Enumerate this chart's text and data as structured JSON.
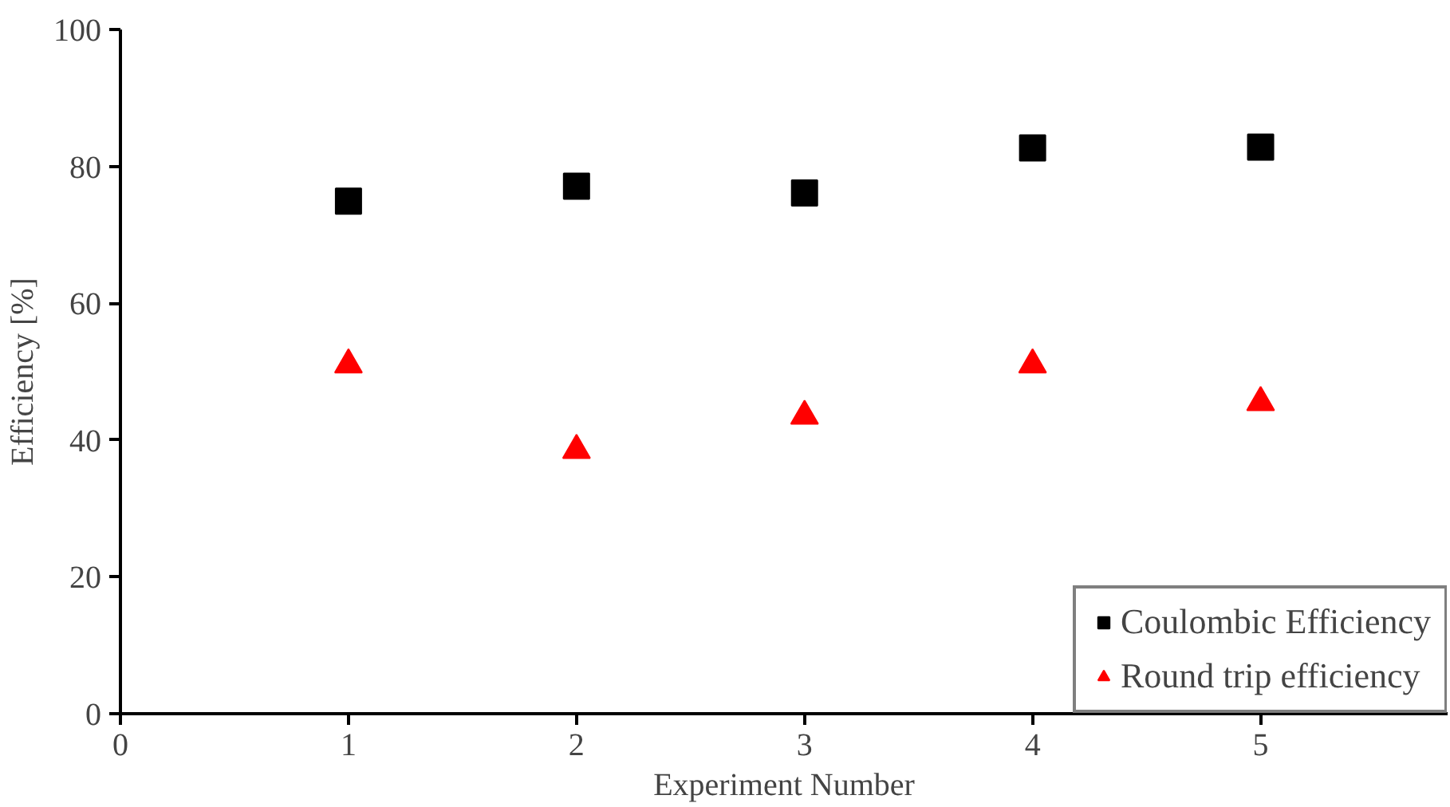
{
  "chart_data": {
    "type": "scatter",
    "xlabel": "Experiment Number",
    "ylabel": "Efficiency [%]",
    "x": [
      1,
      2,
      3,
      4,
      5
    ],
    "series": [
      {
        "name": "Coulombic Efficiency",
        "color": "#000000",
        "marker": "square",
        "values": [
          74.9,
          77.1,
          76.1,
          82.7,
          82.8
        ]
      },
      {
        "name": "Round trip efficiency",
        "color": "#ff0000",
        "marker": "triangle",
        "values": [
          51,
          38.5,
          43.5,
          51,
          45.5
        ]
      }
    ],
    "xlim": [
      0,
      5.82
    ],
    "xticks": [
      0,
      1,
      2,
      3,
      4,
      5
    ],
    "ylim": [
      0,
      100
    ],
    "yticks": [
      0,
      20,
      40,
      60,
      80,
      100
    ],
    "grid": false,
    "legend": "bottom right"
  }
}
